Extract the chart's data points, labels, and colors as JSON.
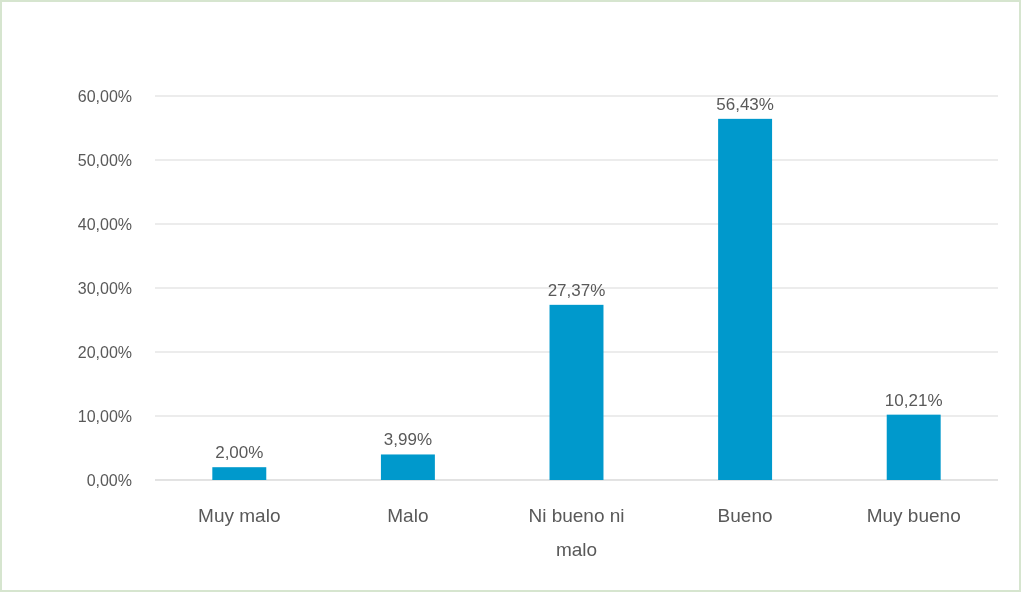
{
  "chart_data": {
    "type": "bar",
    "categories": [
      "Muy malo",
      "Malo",
      "Ni bueno ni malo",
      "Bueno",
      "Muy bueno"
    ],
    "values": [
      2.0,
      3.99,
      27.37,
      56.43,
      10.21
    ],
    "value_labels": [
      "2,00%",
      "3,99%",
      "27,37%",
      "56,43%",
      "10,21%"
    ],
    "color": "#0099cc",
    "ylim": [
      0,
      60
    ],
    "yticks": [
      {
        "value": 0,
        "label": "0,00%"
      },
      {
        "value": 10,
        "label": "10,00%"
      },
      {
        "value": 20,
        "label": "20,00%"
      },
      {
        "value": 30,
        "label": "30,00%"
      },
      {
        "value": 40,
        "label": "40,00%"
      },
      {
        "value": 50,
        "label": "50,00%"
      },
      {
        "value": 60,
        "label": "60,00%"
      }
    ],
    "grid": "y"
  }
}
